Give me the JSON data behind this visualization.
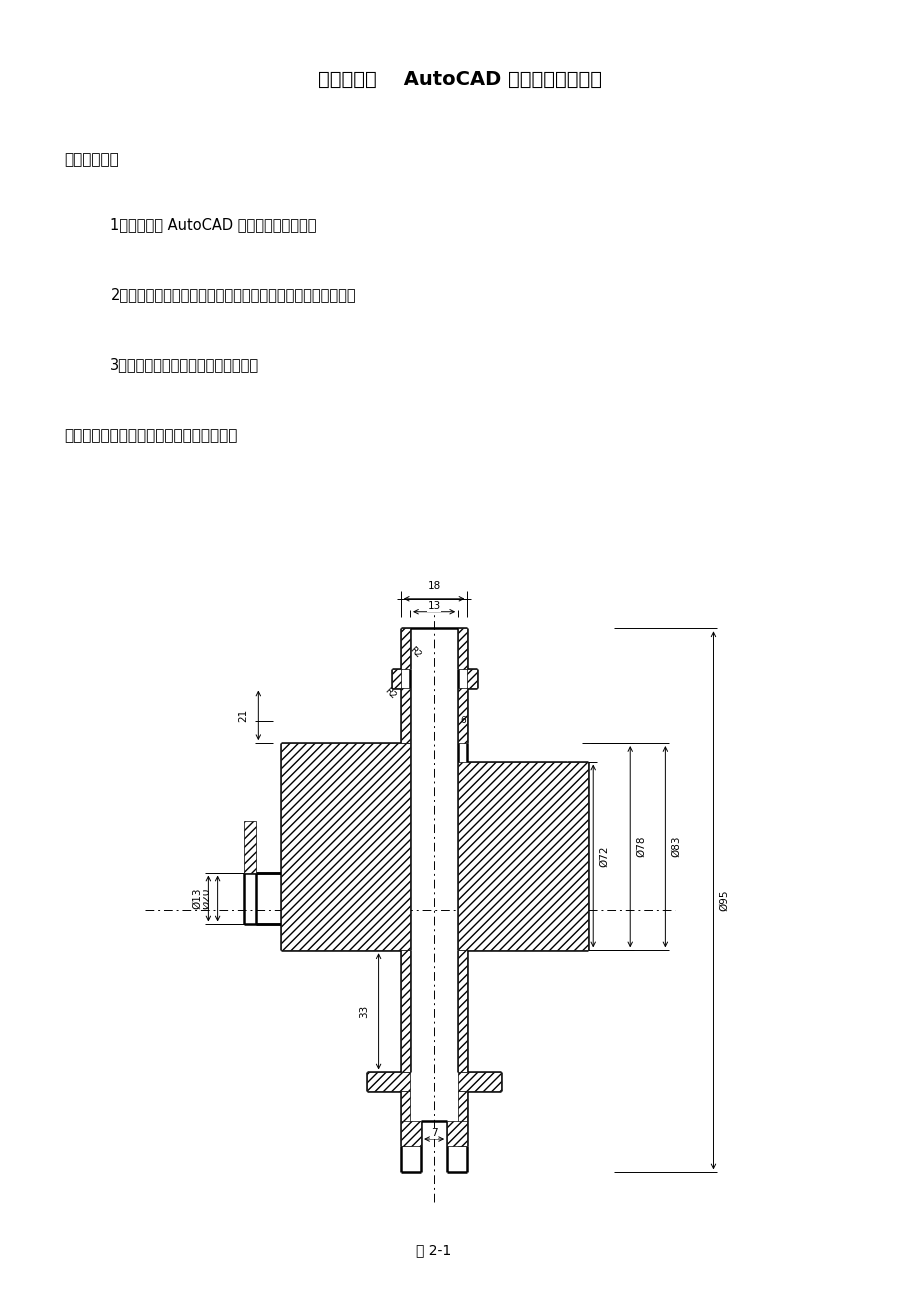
{
  "title": "实验报告二    AutoCAD 二维图形绘制综合",
  "section1": "一．实验目的",
  "items": [
    "1．熟练掌握 AutoCAD 各种二维绘图命令；",
    "2．学习使用二维图形常用编辑命令和精确绘图辅助工具绘图；",
    "3．掌握图案填充和尺寸标注的方法。"
  ],
  "section2": "二．绘制下面所给图形，写出详细绘图步骤",
  "fig_caption": "图 2-1",
  "bg_color": "#ffffff"
}
